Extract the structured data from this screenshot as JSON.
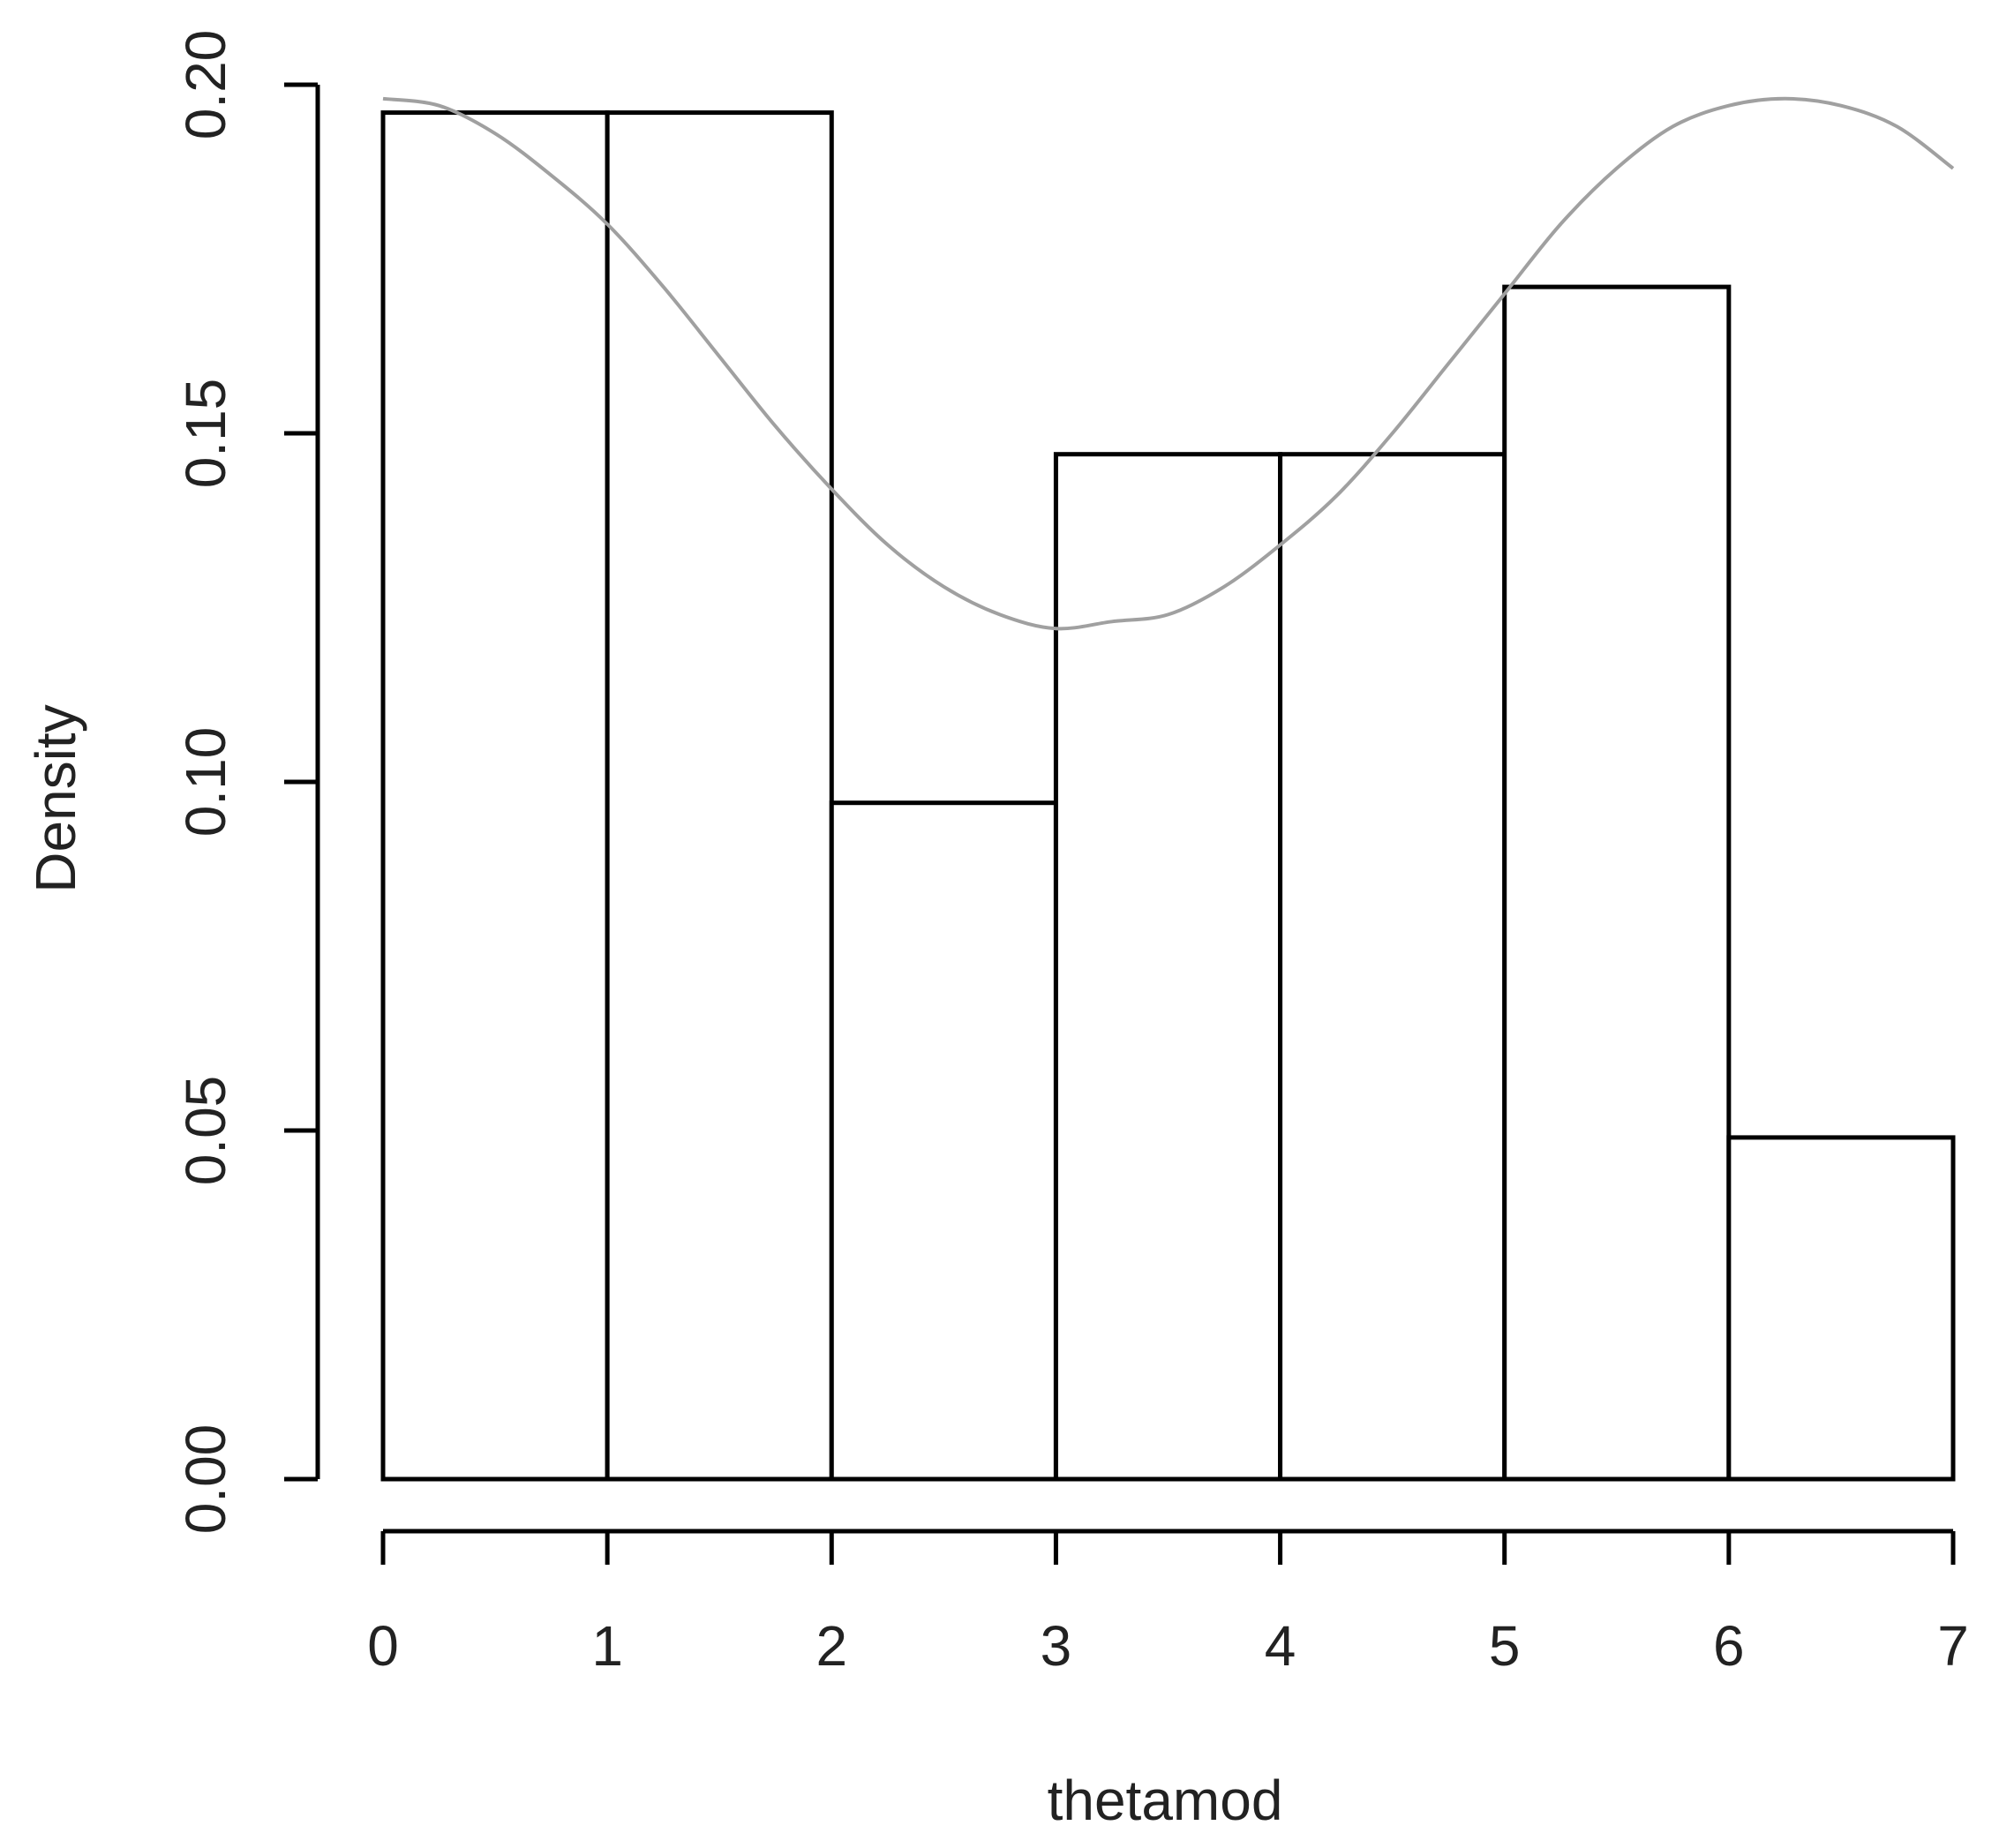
{
  "chart_data": {
    "type": "bar",
    "subtype": "histogram-with-density-curve",
    "xlabel": "thetamod",
    "ylabel": "Density",
    "xlim": [
      0,
      7
    ],
    "ylim": [
      0,
      0.2
    ],
    "x_ticks": [
      "0",
      "1",
      "2",
      "3",
      "4",
      "5",
      "6",
      "7"
    ],
    "y_ticks": [
      "0.00",
      "0.05",
      "0.10",
      "0.15",
      "0.20"
    ],
    "bins": [
      {
        "start": 0,
        "end": 1,
        "value": 0.196
      },
      {
        "start": 1,
        "end": 2,
        "value": 0.196
      },
      {
        "start": 2,
        "end": 3,
        "value": 0.097
      },
      {
        "start": 3,
        "end": 4,
        "value": 0.147
      },
      {
        "start": 4,
        "end": 5,
        "value": 0.147
      },
      {
        "start": 5,
        "end": 6,
        "value": 0.171
      },
      {
        "start": 6,
        "end": 7,
        "value": 0.049
      }
    ],
    "curve": {
      "x": [
        0,
        0.25,
        0.5,
        0.75,
        1,
        1.25,
        1.5,
        1.75,
        2,
        2.25,
        2.5,
        2.75,
        3,
        3.25,
        3.5,
        3.75,
        4,
        4.25,
        4.5,
        4.75,
        5,
        5.25,
        5.5,
        5.75,
        6,
        6.25,
        6.5,
        6.75,
        7
      ],
      "y": [
        0.198,
        0.197,
        0.193,
        0.187,
        0.18,
        0.171,
        0.161,
        0.151,
        0.142,
        0.134,
        0.128,
        0.124,
        0.122,
        0.123,
        0.124,
        0.128,
        0.134,
        0.141,
        0.15,
        0.16,
        0.17,
        0.18,
        0.188,
        0.194,
        0.197,
        0.198,
        0.197,
        0.194,
        0.188
      ],
      "color": "#a0a0a0"
    },
    "bar_fill": "#ffffff",
    "bar_stroke": "#000000",
    "grid": false,
    "legend": "none"
  }
}
